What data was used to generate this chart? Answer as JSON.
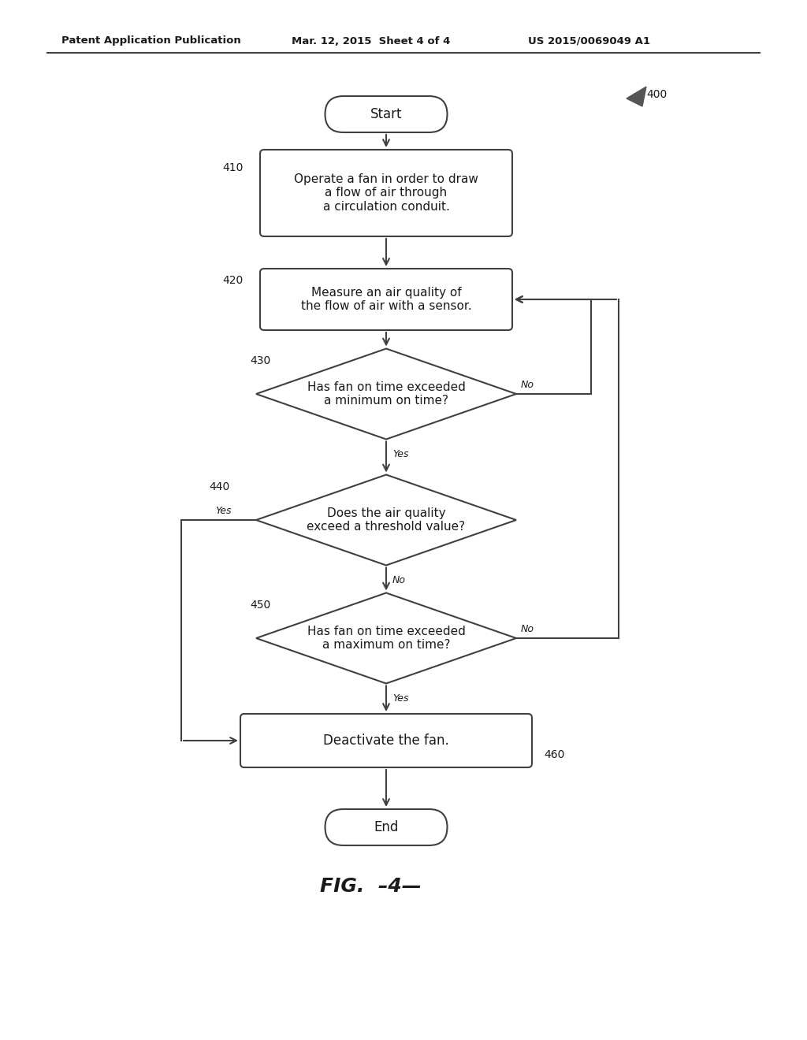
{
  "bg_color": "#ffffff",
  "line_color": "#404040",
  "text_color": "#1a1a1a",
  "header_left": "Patent Application Publication",
  "header_mid": "Mar. 12, 2015  Sheet 4 of 4",
  "header_right": "US 2015/0069049 A1",
  "fig_label": "FIG.   –4—",
  "ref_400": "400",
  "ref_410": "410",
  "ref_420": "420",
  "ref_430": "430",
  "ref_440": "440",
  "ref_450": "450",
  "ref_460": "460",
  "start_label": "Start",
  "end_label": "End",
  "box1_text": "Operate a fan in order to draw\na flow of air through\na circulation conduit.",
  "box2_text": "Measure an air quality of\nthe flow of air with a sensor.",
  "diamond1_text": "Has fan on time exceeded\na minimum on time?",
  "diamond2_text": "Does the air quality\nexceed a threshold value?",
  "diamond3_text": "Has fan on time exceeded\na maximum on time?",
  "box3_text": "Deactivate the fan.",
  "yes1": "Yes",
  "no1": "No",
  "yes2": "Yes",
  "no2": "No",
  "yes3": "Yes",
  "no3": "No"
}
